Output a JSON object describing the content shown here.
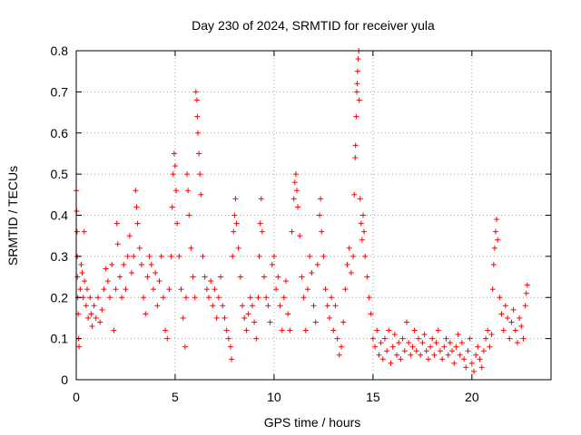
{
  "chart_data": {
    "type": "scatter",
    "title": "Day 230 of 2024, SRMTID for receiver yula",
    "xlabel": "GPS time / hours",
    "ylabel": "SRMTID / TECUs",
    "xlim": [
      0,
      24
    ],
    "ylim": [
      0,
      0.8
    ],
    "grid": true,
    "marker": "+",
    "color": "#ff0000",
    "x_ticks": [
      0,
      5,
      10,
      15,
      20
    ],
    "x_tick_labels": [
      "0",
      "5",
      "10",
      "15",
      "20"
    ],
    "y_ticks": [
      0,
      0.1,
      0.2,
      0.3,
      0.4,
      0.5,
      0.6,
      0.7,
      0.8
    ],
    "y_tick_labels": [
      "0",
      "0.1",
      "0.2",
      "0.3",
      "0.4",
      "0.5",
      "0.6",
      "0.7",
      "0.8"
    ],
    "series": [
      {
        "name": "SRMTID",
        "points": [
          [
            0.0,
            0.46
          ],
          [
            0.02,
            0.41
          ],
          [
            0.04,
            0.36
          ],
          [
            0.05,
            0.3
          ],
          [
            0.06,
            0.25
          ],
          [
            0.08,
            0.2
          ],
          [
            0.1,
            0.16
          ],
          [
            0.12,
            0.1
          ],
          [
            0.14,
            0.08
          ],
          [
            0.2,
            0.22
          ],
          [
            0.25,
            0.28
          ],
          [
            0.3,
            0.26
          ],
          [
            0.35,
            0.2
          ],
          [
            0.4,
            0.36
          ],
          [
            0.42,
            0.24
          ],
          [
            0.5,
            0.18
          ],
          [
            0.55,
            0.22
          ],
          [
            0.6,
            0.15
          ],
          [
            0.7,
            0.2
          ],
          [
            0.75,
            0.16
          ],
          [
            0.8,
            0.13
          ],
          [
            0.9,
            0.18
          ],
          [
            1.0,
            0.15
          ],
          [
            1.1,
            0.2
          ],
          [
            1.2,
            0.14
          ],
          [
            1.3,
            0.17
          ],
          [
            1.4,
            0.22
          ],
          [
            1.5,
            0.27
          ],
          [
            1.6,
            0.24
          ],
          [
            1.7,
            0.2
          ],
          [
            1.8,
            0.28
          ],
          [
            1.9,
            0.12
          ],
          [
            2.0,
            0.22
          ],
          [
            2.05,
            0.38
          ],
          [
            2.1,
            0.33
          ],
          [
            2.2,
            0.25
          ],
          [
            2.3,
            0.2
          ],
          [
            2.4,
            0.28
          ],
          [
            2.5,
            0.22
          ],
          [
            2.6,
            0.3
          ],
          [
            2.7,
            0.35
          ],
          [
            2.8,
            0.26
          ],
          [
            2.9,
            0.3
          ],
          [
            3.0,
            0.46
          ],
          [
            3.05,
            0.42
          ],
          [
            3.1,
            0.38
          ],
          [
            3.2,
            0.32
          ],
          [
            3.3,
            0.28
          ],
          [
            3.4,
            0.2
          ],
          [
            3.5,
            0.16
          ],
          [
            3.6,
            0.25
          ],
          [
            3.7,
            0.3
          ],
          [
            3.8,
            0.28
          ],
          [
            3.9,
            0.22
          ],
          [
            4.0,
            0.26
          ],
          [
            4.1,
            0.18
          ],
          [
            4.2,
            0.24
          ],
          [
            4.3,
            0.3
          ],
          [
            4.4,
            0.2
          ],
          [
            4.5,
            0.12
          ],
          [
            4.6,
            0.1
          ],
          [
            4.7,
            0.22
          ],
          [
            4.8,
            0.3
          ],
          [
            4.85,
            0.42
          ],
          [
            4.9,
            0.5
          ],
          [
            4.95,
            0.55
          ],
          [
            5.0,
            0.52
          ],
          [
            5.05,
            0.46
          ],
          [
            5.1,
            0.38
          ],
          [
            5.2,
            0.3
          ],
          [
            5.3,
            0.22
          ],
          [
            5.4,
            0.15
          ],
          [
            5.5,
            0.08
          ],
          [
            5.55,
            0.2
          ],
          [
            5.6,
            0.5
          ],
          [
            5.65,
            0.46
          ],
          [
            5.7,
            0.4
          ],
          [
            5.8,
            0.32
          ],
          [
            5.9,
            0.25
          ],
          [
            6.0,
            0.2
          ],
          [
            6.05,
            0.7
          ],
          [
            6.1,
            0.68
          ],
          [
            6.12,
            0.64
          ],
          [
            6.15,
            0.6
          ],
          [
            6.2,
            0.55
          ],
          [
            6.25,
            0.5
          ],
          [
            6.3,
            0.45
          ],
          [
            6.4,
            0.3
          ],
          [
            6.5,
            0.25
          ],
          [
            6.6,
            0.22
          ],
          [
            6.7,
            0.2
          ],
          [
            6.8,
            0.24
          ],
          [
            6.9,
            0.18
          ],
          [
            7.0,
            0.22
          ],
          [
            7.1,
            0.15
          ],
          [
            7.2,
            0.2
          ],
          [
            7.3,
            0.25
          ],
          [
            7.4,
            0.18
          ],
          [
            7.5,
            0.15
          ],
          [
            7.6,
            0.12
          ],
          [
            7.7,
            0.1
          ],
          [
            7.8,
            0.08
          ],
          [
            7.85,
            0.05
          ],
          [
            7.9,
            0.3
          ],
          [
            7.95,
            0.36
          ],
          [
            8.0,
            0.4
          ],
          [
            8.05,
            0.44
          ],
          [
            8.1,
            0.38
          ],
          [
            8.2,
            0.32
          ],
          [
            8.3,
            0.25
          ],
          [
            8.4,
            0.18
          ],
          [
            8.5,
            0.15
          ],
          [
            8.6,
            0.12
          ],
          [
            8.7,
            0.16
          ],
          [
            8.8,
            0.2
          ],
          [
            8.9,
            0.18
          ],
          [
            9.0,
            0.14
          ],
          [
            9.1,
            0.1
          ],
          [
            9.2,
            0.2
          ],
          [
            9.25,
            0.3
          ],
          [
            9.3,
            0.38
          ],
          [
            9.35,
            0.44
          ],
          [
            9.4,
            0.36
          ],
          [
            9.5,
            0.25
          ],
          [
            9.6,
            0.2
          ],
          [
            9.7,
            0.18
          ],
          [
            9.8,
            0.14
          ],
          [
            9.9,
            0.28
          ],
          [
            10.0,
            0.3
          ],
          [
            10.1,
            0.22
          ],
          [
            10.2,
            0.25
          ],
          [
            10.3,
            0.18
          ],
          [
            10.4,
            0.12
          ],
          [
            10.5,
            0.2
          ],
          [
            10.6,
            0.24
          ],
          [
            10.7,
            0.16
          ],
          [
            10.8,
            0.12
          ],
          [
            10.9,
            0.36
          ],
          [
            11.0,
            0.44
          ],
          [
            11.05,
            0.48
          ],
          [
            11.1,
            0.5
          ],
          [
            11.15,
            0.46
          ],
          [
            11.2,
            0.42
          ],
          [
            11.3,
            0.35
          ],
          [
            11.4,
            0.25
          ],
          [
            11.5,
            0.2
          ],
          [
            11.6,
            0.12
          ],
          [
            11.7,
            0.22
          ],
          [
            11.8,
            0.3
          ],
          [
            11.9,
            0.26
          ],
          [
            12.0,
            0.18
          ],
          [
            12.1,
            0.14
          ],
          [
            12.2,
            0.28
          ],
          [
            12.3,
            0.4
          ],
          [
            12.35,
            0.44
          ],
          [
            12.4,
            0.36
          ],
          [
            12.5,
            0.3
          ],
          [
            12.6,
            0.22
          ],
          [
            12.7,
            0.18
          ],
          [
            12.8,
            0.15
          ],
          [
            12.9,
            0.2
          ],
          [
            13.0,
            0.12
          ],
          [
            13.1,
            0.18
          ],
          [
            13.2,
            0.1
          ],
          [
            13.3,
            0.06
          ],
          [
            13.4,
            0.08
          ],
          [
            13.5,
            0.14
          ],
          [
            13.6,
            0.22
          ],
          [
            13.7,
            0.28
          ],
          [
            13.8,
            0.32
          ],
          [
            13.9,
            0.26
          ],
          [
            14.0,
            0.3
          ],
          [
            14.05,
            0.45
          ],
          [
            14.1,
            0.54
          ],
          [
            14.12,
            0.57
          ],
          [
            14.15,
            0.64
          ],
          [
            14.18,
            0.7
          ],
          [
            14.2,
            0.72
          ],
          [
            14.22,
            0.75
          ],
          [
            14.25,
            0.78
          ],
          [
            14.28,
            0.8
          ],
          [
            14.3,
            0.68
          ],
          [
            14.35,
            0.44
          ],
          [
            14.4,
            0.38
          ],
          [
            14.45,
            0.34
          ],
          [
            14.5,
            0.4
          ],
          [
            14.55,
            0.36
          ],
          [
            14.6,
            0.3
          ],
          [
            14.7,
            0.25
          ],
          [
            14.8,
            0.2
          ],
          [
            14.9,
            0.16
          ],
          [
            15.0,
            0.1
          ],
          [
            15.1,
            0.08
          ],
          [
            15.2,
            0.12
          ],
          [
            15.3,
            0.06
          ],
          [
            15.4,
            0.09
          ],
          [
            15.5,
            0.05
          ],
          [
            15.6,
            0.1
          ],
          [
            15.7,
            0.07
          ],
          [
            15.8,
            0.12
          ],
          [
            15.9,
            0.04
          ],
          [
            16.0,
            0.08
          ],
          [
            16.1,
            0.11
          ],
          [
            16.2,
            0.06
          ],
          [
            16.3,
            0.09
          ],
          [
            16.4,
            0.05
          ],
          [
            16.5,
            0.1
          ],
          [
            16.6,
            0.07
          ],
          [
            16.7,
            0.14
          ],
          [
            16.8,
            0.09
          ],
          [
            16.9,
            0.06
          ],
          [
            17.0,
            0.08
          ],
          [
            17.1,
            0.12
          ],
          [
            17.2,
            0.07
          ],
          [
            17.3,
            0.1
          ],
          [
            17.4,
            0.06
          ],
          [
            17.5,
            0.09
          ],
          [
            17.6,
            0.11
          ],
          [
            17.7,
            0.07
          ],
          [
            17.8,
            0.05
          ],
          [
            17.9,
            0.08
          ],
          [
            18.0,
            0.1
          ],
          [
            18.1,
            0.06
          ],
          [
            18.2,
            0.09
          ],
          [
            18.3,
            0.12
          ],
          [
            18.4,
            0.07
          ],
          [
            18.5,
            0.05
          ],
          [
            18.6,
            0.08
          ],
          [
            18.7,
            0.1
          ],
          [
            18.8,
            0.06
          ],
          [
            18.9,
            0.09
          ],
          [
            19.0,
            0.07
          ],
          [
            19.1,
            0.04
          ],
          [
            19.2,
            0.08
          ],
          [
            19.3,
            0.11
          ],
          [
            19.4,
            0.06
          ],
          [
            19.5,
            0.09
          ],
          [
            19.6,
            0.05
          ],
          [
            19.7,
            0.03
          ],
          [
            19.8,
            0.07
          ],
          [
            19.9,
            0.1
          ],
          [
            20.0,
            0.04
          ],
          [
            20.1,
            0.02
          ],
          [
            20.2,
            0.06
          ],
          [
            20.3,
            0.08
          ],
          [
            20.4,
            0.05
          ],
          [
            20.5,
            0.03
          ],
          [
            20.6,
            0.07
          ],
          [
            20.7,
            0.1
          ],
          [
            20.8,
            0.12
          ],
          [
            20.9,
            0.08
          ],
          [
            21.0,
            0.11
          ],
          [
            21.05,
            0.22
          ],
          [
            21.1,
            0.28
          ],
          [
            21.15,
            0.32
          ],
          [
            21.2,
            0.36
          ],
          [
            21.25,
            0.39
          ],
          [
            21.3,
            0.34
          ],
          [
            21.4,
            0.2
          ],
          [
            21.5,
            0.16
          ],
          [
            21.6,
            0.12
          ],
          [
            21.7,
            0.18
          ],
          [
            21.8,
            0.15
          ],
          [
            21.9,
            0.1
          ],
          [
            22.0,
            0.14
          ],
          [
            22.1,
            0.17
          ],
          [
            22.2,
            0.12
          ],
          [
            22.3,
            0.09
          ],
          [
            22.4,
            0.15
          ],
          [
            22.5,
            0.13
          ],
          [
            22.6,
            0.1
          ],
          [
            22.7,
            0.18
          ],
          [
            22.75,
            0.21
          ],
          [
            22.8,
            0.23
          ]
        ]
      }
    ]
  }
}
